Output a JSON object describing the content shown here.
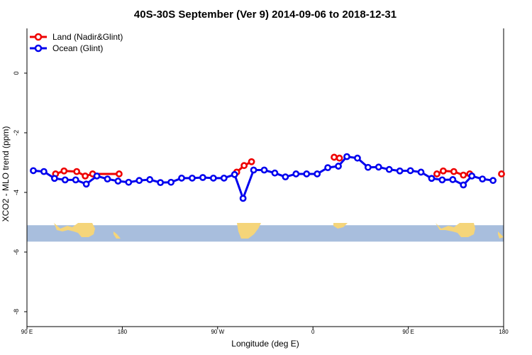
{
  "chart_data": {
    "type": "line",
    "title": "40S-30S September (Ver 9)   2014-09-06 to 2018-12-31",
    "xlabel": "Longitude (deg E)",
    "ylabel": "XCO2 - MLO trend (ppm)",
    "xlim": [
      90,
      540
    ],
    "ylim": [
      -8.5,
      1.5
    ],
    "x_ticks": [
      {
        "value": 90,
        "label": "90 E"
      },
      {
        "value": 180,
        "label": "180"
      },
      {
        "value": 270,
        "label": "90 W"
      },
      {
        "value": 360,
        "label": "0"
      },
      {
        "value": 450,
        "label": "90 E"
      },
      {
        "value": 540,
        "label": "180"
      }
    ],
    "y_ticks": [
      {
        "value": 0,
        "label": "0"
      },
      {
        "value": -2,
        "label": "-2"
      },
      {
        "value": -4,
        "label": "-4"
      },
      {
        "value": -6,
        "label": "-6"
      },
      {
        "value": -8,
        "label": "-8"
      }
    ],
    "legend_position": "top-left",
    "series": [
      {
        "name": "Land (Nadir&Glint)",
        "color": "#ee0000",
        "segments": [
          [
            [
              117,
              -3.38
            ],
            [
              125,
              -3.28
            ],
            [
              137,
              -3.3
            ],
            [
              145,
              -3.45
            ],
            [
              152,
              -3.38
            ],
            [
              177,
              -3.38
            ]
          ],
          [
            [
              288,
              -3.32
            ],
            [
              295,
              -3.1
            ],
            [
              302,
              -2.97
            ]
          ],
          [
            [
              380,
              -2.82
            ],
            [
              385,
              -2.85
            ]
          ],
          [
            [
              477,
              -3.38
            ],
            [
              483,
              -3.28
            ],
            [
              493,
              -3.3
            ],
            [
              502,
              -3.42
            ],
            [
              508,
              -3.38
            ]
          ],
          [
            [
              538,
              -3.38
            ]
          ]
        ]
      },
      {
        "name": "Ocean (Glint)",
        "color": "#0000ee",
        "segments": [
          [
            [
              96,
              -3.27
            ],
            [
              106,
              -3.3
            ],
            [
              116,
              -3.53
            ],
            [
              126,
              -3.58
            ],
            [
              136,
              -3.58
            ],
            [
              146,
              -3.72
            ],
            [
              156,
              -3.45
            ],
            [
              166,
              -3.55
            ],
            [
              176,
              -3.62
            ],
            [
              186,
              -3.66
            ],
            [
              196,
              -3.6
            ],
            [
              206,
              -3.57
            ],
            [
              216,
              -3.67
            ],
            [
              226,
              -3.66
            ],
            [
              236,
              -3.52
            ],
            [
              246,
              -3.52
            ],
            [
              256,
              -3.5
            ],
            [
              266,
              -3.52
            ],
            [
              276,
              -3.52
            ],
            [
              286,
              -3.4
            ],
            [
              294,
              -4.2
            ],
            [
              304,
              -3.25
            ],
            [
              314,
              -3.25
            ],
            [
              324,
              -3.35
            ],
            [
              334,
              -3.48
            ],
            [
              344,
              -3.38
            ],
            [
              354,
              -3.38
            ],
            [
              364,
              -3.38
            ],
            [
              374,
              -3.17
            ],
            [
              384,
              -3.12
            ],
            [
              392,
              -2.8
            ],
            [
              402,
              -2.85
            ],
            [
              412,
              -3.16
            ],
            [
              422,
              -3.15
            ],
            [
              432,
              -3.23
            ],
            [
              442,
              -3.28
            ],
            [
              452,
              -3.27
            ],
            [
              462,
              -3.32
            ],
            [
              472,
              -3.53
            ],
            [
              482,
              -3.58
            ],
            [
              492,
              -3.57
            ],
            [
              502,
              -3.75
            ],
            [
              510,
              -3.45
            ],
            [
              520,
              -3.55
            ],
            [
              530,
              -3.6
            ]
          ]
        ]
      }
    ],
    "map_strip": {
      "y_top": -5.1,
      "y_bottom": -5.65,
      "ocean_color": "#a8bedd",
      "land_color": "#f5d57a"
    }
  }
}
